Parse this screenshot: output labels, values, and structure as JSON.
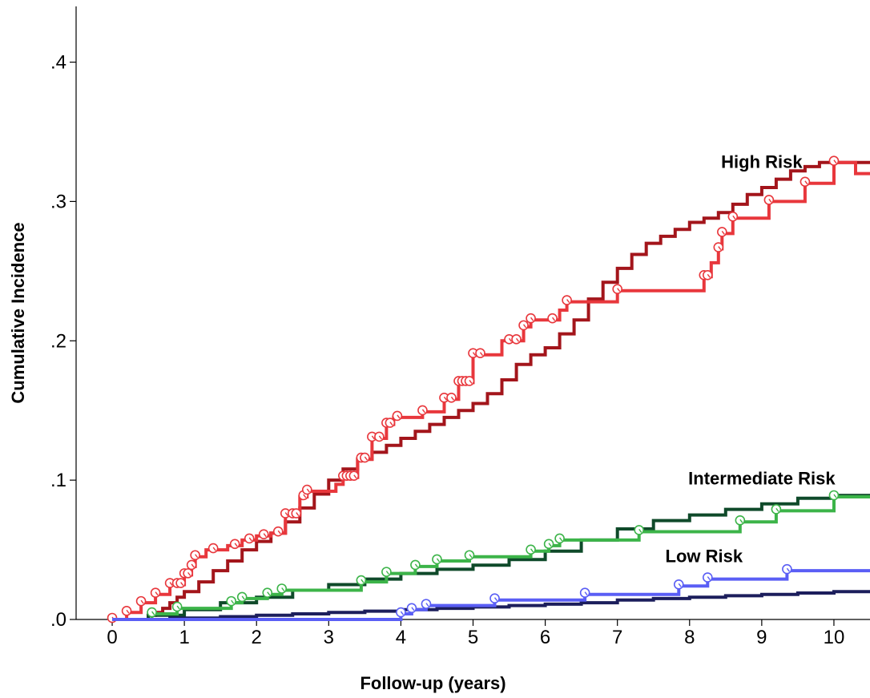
{
  "chart_data": {
    "type": "line",
    "subtype": "step",
    "title": "",
    "xlabel": "Follow-up (years)",
    "ylabel": "Cumulative Incidence",
    "xlim": [
      -0.5,
      10.5
    ],
    "ylim": [
      0,
      0.44
    ],
    "xticks": [
      0,
      1,
      2,
      3,
      4,
      5,
      6,
      7,
      8,
      9,
      10
    ],
    "xtick_labels": [
      "0",
      "1",
      "2",
      "3",
      "4",
      "5",
      "6",
      "7",
      "8",
      "9",
      "10"
    ],
    "yticks": [
      0,
      0.1,
      0.2,
      0.3,
      0.4
    ],
    "ytick_labels": [
      ".0",
      ".1",
      ".2",
      ".3",
      ".4"
    ],
    "grid": false,
    "legend": "none",
    "annotations": [
      {
        "text": "High Risk",
        "x": 9.0,
        "y": 0.324
      },
      {
        "text": "Intermediate Risk",
        "x": 9.0,
        "y": 0.097
      },
      {
        "text": "Low Risk",
        "x": 8.2,
        "y": 0.041
      }
    ],
    "series": [
      {
        "color": "#a3151b",
        "style": "step",
        "markers": false,
        "points": [
          [
            0.0,
            0.0
          ],
          [
            0.5,
            0.003
          ],
          [
            0.6,
            0.005
          ],
          [
            0.7,
            0.008
          ],
          [
            0.8,
            0.012
          ],
          [
            0.9,
            0.016
          ],
          [
            1.0,
            0.02
          ],
          [
            1.2,
            0.027
          ],
          [
            1.4,
            0.035
          ],
          [
            1.6,
            0.042
          ],
          [
            1.8,
            0.05
          ],
          [
            2.0,
            0.056
          ],
          [
            2.2,
            0.062
          ],
          [
            2.4,
            0.07
          ],
          [
            2.6,
            0.08
          ],
          [
            2.8,
            0.09
          ],
          [
            3.0,
            0.1
          ],
          [
            3.2,
            0.108
          ],
          [
            3.4,
            0.115
          ],
          [
            3.6,
            0.12
          ],
          [
            3.8,
            0.125
          ],
          [
            4.0,
            0.13
          ],
          [
            4.2,
            0.135
          ],
          [
            4.4,
            0.14
          ],
          [
            4.6,
            0.145
          ],
          [
            4.8,
            0.15
          ],
          [
            5.0,
            0.155
          ],
          [
            5.2,
            0.162
          ],
          [
            5.4,
            0.172
          ],
          [
            5.6,
            0.183
          ],
          [
            5.8,
            0.19
          ],
          [
            6.0,
            0.195
          ],
          [
            6.2,
            0.205
          ],
          [
            6.4,
            0.215
          ],
          [
            6.6,
            0.23
          ],
          [
            6.8,
            0.242
          ],
          [
            7.0,
            0.252
          ],
          [
            7.2,
            0.262
          ],
          [
            7.4,
            0.27
          ],
          [
            7.6,
            0.275
          ],
          [
            7.8,
            0.28
          ],
          [
            8.0,
            0.285
          ],
          [
            8.2,
            0.288
          ],
          [
            8.4,
            0.292
          ],
          [
            8.6,
            0.298
          ],
          [
            8.8,
            0.305
          ],
          [
            9.0,
            0.31
          ],
          [
            9.2,
            0.316
          ],
          [
            9.4,
            0.322
          ],
          [
            9.6,
            0.325
          ],
          [
            9.8,
            0.328
          ],
          [
            10.5,
            0.328
          ]
        ]
      },
      {
        "color": "#e8373c",
        "style": "step",
        "markers": true,
        "points": [
          [
            0.0,
            0.0
          ],
          [
            0.2,
            0.005
          ],
          [
            0.4,
            0.012
          ],
          [
            0.6,
            0.018
          ],
          [
            0.8,
            0.025
          ],
          [
            1.0,
            0.032
          ],
          [
            1.1,
            0.038
          ],
          [
            1.15,
            0.045
          ],
          [
            1.3,
            0.05
          ],
          [
            1.6,
            0.053
          ],
          [
            1.8,
            0.057
          ],
          [
            2.0,
            0.06
          ],
          [
            2.2,
            0.062
          ],
          [
            2.4,
            0.075
          ],
          [
            2.6,
            0.088
          ],
          [
            2.7,
            0.092
          ],
          [
            3.1,
            0.097
          ],
          [
            3.2,
            0.102
          ],
          [
            3.4,
            0.115
          ],
          [
            3.6,
            0.13
          ],
          [
            3.8,
            0.14
          ],
          [
            3.9,
            0.145
          ],
          [
            4.3,
            0.149
          ],
          [
            4.6,
            0.158
          ],
          [
            4.8,
            0.17
          ],
          [
            5.0,
            0.19
          ],
          [
            5.4,
            0.2
          ],
          [
            5.7,
            0.21
          ],
          [
            5.8,
            0.215
          ],
          [
            6.2,
            0.222
          ],
          [
            6.3,
            0.228
          ],
          [
            7.0,
            0.236
          ],
          [
            8.2,
            0.246
          ],
          [
            8.3,
            0.256
          ],
          [
            8.4,
            0.266
          ],
          [
            8.45,
            0.277
          ],
          [
            8.6,
            0.288
          ],
          [
            9.1,
            0.3
          ],
          [
            9.6,
            0.313
          ],
          [
            10.0,
            0.328
          ],
          [
            10.3,
            0.32
          ],
          [
            10.5,
            0.32
          ]
        ],
        "marker_x": [
          0.0,
          0.2,
          0.4,
          0.6,
          0.8,
          0.9,
          0.95,
          1.0,
          1.05,
          1.1,
          1.15,
          1.4,
          1.7,
          1.9,
          2.1,
          2.3,
          2.4,
          2.5,
          2.55,
          2.65,
          2.7,
          3.2,
          3.25,
          3.3,
          3.35,
          3.45,
          3.5,
          3.6,
          3.7,
          3.8,
          3.85,
          3.95,
          4.3,
          4.6,
          4.7,
          4.8,
          4.85,
          4.9,
          4.95,
          5.0,
          5.1,
          5.5,
          5.6,
          5.7,
          5.8,
          6.1,
          6.3,
          7.0,
          8.2,
          8.25,
          8.4,
          8.45,
          8.6,
          9.1,
          9.6,
          10.0
        ]
      },
      {
        "color": "#0f4a2a",
        "style": "step",
        "markers": false,
        "points": [
          [
            0.0,
            0.0
          ],
          [
            0.5,
            0.003
          ],
          [
            1.0,
            0.007
          ],
          [
            1.5,
            0.012
          ],
          [
            2.0,
            0.016
          ],
          [
            2.5,
            0.021
          ],
          [
            3.0,
            0.025
          ],
          [
            3.5,
            0.029
          ],
          [
            4.0,
            0.033
          ],
          [
            4.5,
            0.036
          ],
          [
            5.0,
            0.039
          ],
          [
            5.5,
            0.043
          ],
          [
            6.0,
            0.049
          ],
          [
            6.5,
            0.057
          ],
          [
            7.0,
            0.065
          ],
          [
            7.5,
            0.071
          ],
          [
            8.0,
            0.075
          ],
          [
            8.5,
            0.079
          ],
          [
            9.0,
            0.083
          ],
          [
            9.5,
            0.087
          ],
          [
            10.0,
            0.089
          ],
          [
            10.5,
            0.089
          ]
        ]
      },
      {
        "color": "#3cb449",
        "style": "step",
        "markers": true,
        "points": [
          [
            0.0,
            0.0
          ],
          [
            0.55,
            0.004
          ],
          [
            0.9,
            0.008
          ],
          [
            1.65,
            0.012
          ],
          [
            1.8,
            0.015
          ],
          [
            2.15,
            0.018
          ],
          [
            2.35,
            0.021
          ],
          [
            3.45,
            0.027
          ],
          [
            3.8,
            0.033
          ],
          [
            4.2,
            0.038
          ],
          [
            4.5,
            0.042
          ],
          [
            4.95,
            0.045
          ],
          [
            5.8,
            0.049
          ],
          [
            6.05,
            0.053
          ],
          [
            6.2,
            0.057
          ],
          [
            7.3,
            0.063
          ],
          [
            8.7,
            0.07
          ],
          [
            9.2,
            0.078
          ],
          [
            10.0,
            0.088
          ],
          [
            10.5,
            0.088
          ]
        ],
        "marker_x": [
          0.55,
          0.9,
          1.65,
          1.8,
          2.15,
          2.35,
          3.45,
          3.8,
          4.2,
          4.5,
          4.95,
          5.8,
          6.05,
          6.2,
          7.3,
          8.7,
          9.2,
          10.0
        ]
      },
      {
        "color": "#1c1e5c",
        "style": "step",
        "markers": false,
        "points": [
          [
            0.0,
            0.0
          ],
          [
            0.8,
            0.001
          ],
          [
            1.5,
            0.002
          ],
          [
            2.0,
            0.003
          ],
          [
            2.5,
            0.004
          ],
          [
            3.0,
            0.005
          ],
          [
            3.5,
            0.006
          ],
          [
            4.0,
            0.007
          ],
          [
            4.5,
            0.008
          ],
          [
            5.0,
            0.009
          ],
          [
            5.5,
            0.01
          ],
          [
            6.0,
            0.011
          ],
          [
            6.5,
            0.012
          ],
          [
            7.0,
            0.014
          ],
          [
            7.5,
            0.015
          ],
          [
            8.0,
            0.016
          ],
          [
            8.5,
            0.017
          ],
          [
            9.0,
            0.018
          ],
          [
            9.5,
            0.019
          ],
          [
            10.0,
            0.02
          ],
          [
            10.5,
            0.02
          ]
        ]
      },
      {
        "color": "#5a5ef5",
        "style": "step",
        "markers": true,
        "points": [
          [
            0.0,
            0.0
          ],
          [
            4.0,
            0.004
          ],
          [
            4.15,
            0.007
          ],
          [
            4.35,
            0.01
          ],
          [
            5.3,
            0.014
          ],
          [
            6.55,
            0.018
          ],
          [
            7.85,
            0.024
          ],
          [
            8.25,
            0.029
          ],
          [
            9.35,
            0.035
          ],
          [
            10.5,
            0.035
          ]
        ],
        "marker_x": [
          4.0,
          4.15,
          4.35,
          5.3,
          6.55,
          7.85,
          8.25,
          9.35
        ]
      }
    ]
  }
}
